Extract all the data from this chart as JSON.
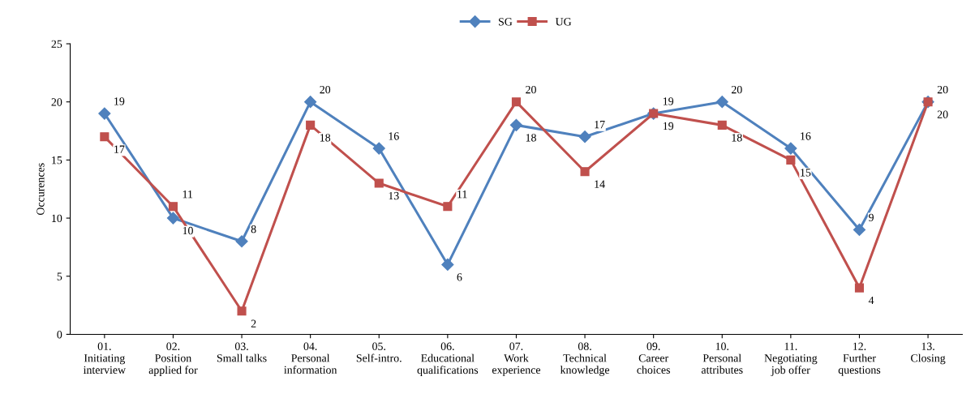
{
  "chart_data": {
    "type": "line",
    "categories": [
      "01.\nInitiating\ninterview",
      "02.\nPosition\napplied for",
      "03.\nSmall talks",
      "04.\nPersonal\ninformation",
      "05.\nSelf-intro.",
      "06.\nEducational\nqualifications",
      "07.\nWork\nexperience",
      "08.\nTechnical\nknowledge",
      "09.\nCareer\nchoices",
      "10.\nPersonal\nattributes",
      "11.\nNegotiating\njob offer",
      "12.\nFurther\nquestions",
      "13.\nClosing"
    ],
    "series": [
      {
        "name": "SG",
        "color": "#4f81bd",
        "marker": "diamond",
        "values": [
          19,
          10,
          8,
          20,
          16,
          6,
          18,
          17,
          19,
          20,
          16,
          9,
          20
        ]
      },
      {
        "name": "UG",
        "color": "#c0504d",
        "marker": "square",
        "values": [
          17,
          11,
          2,
          18,
          13,
          11,
          20,
          14,
          19,
          18,
          15,
          4,
          20
        ]
      }
    ],
    "ylabel": "Occurences",
    "ylim": [
      0,
      25
    ],
    "yticks": [
      0,
      5,
      10,
      15,
      20,
      25
    ],
    "data_labels": true,
    "legend": "top",
    "grid": false,
    "line_style": "solid"
  }
}
